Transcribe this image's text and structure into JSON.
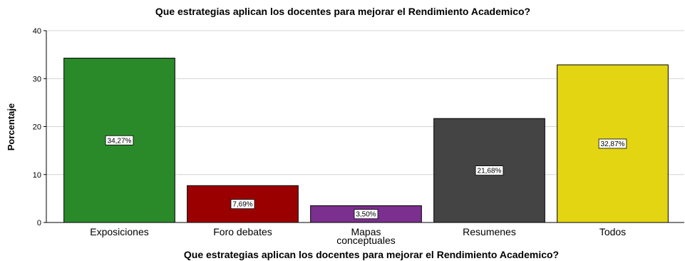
{
  "chart_data": {
    "type": "bar",
    "title": "Que estrategias aplican los docentes para mejorar el Rendimiento Academico?",
    "xlabel": "Que estrategias aplican los docentes para mejorar el Rendimiento Academico?",
    "ylabel": "Porcentaje",
    "ylim": [
      0,
      40
    ],
    "yticks": [
      "0",
      "10",
      "20",
      "30",
      "40"
    ],
    "grid": true,
    "categories": [
      {
        "lines": [
          "Exposiciones"
        ]
      },
      {
        "lines": [
          "Foro debates"
        ]
      },
      {
        "lines": [
          "Mapas",
          "conceptuales"
        ]
      },
      {
        "lines": [
          "Resumenes"
        ]
      },
      {
        "lines": [
          "Todos"
        ]
      }
    ],
    "values": [
      34.27,
      7.69,
      3.5,
      21.68,
      32.87
    ],
    "data_labels": [
      "34,27%",
      "7,69%",
      "3,50%",
      "21,68%",
      "32,87%"
    ],
    "colors": [
      "#2a8a2a",
      "#9b0000",
      "#7b2f8e",
      "#444444",
      "#e3d512"
    ]
  }
}
